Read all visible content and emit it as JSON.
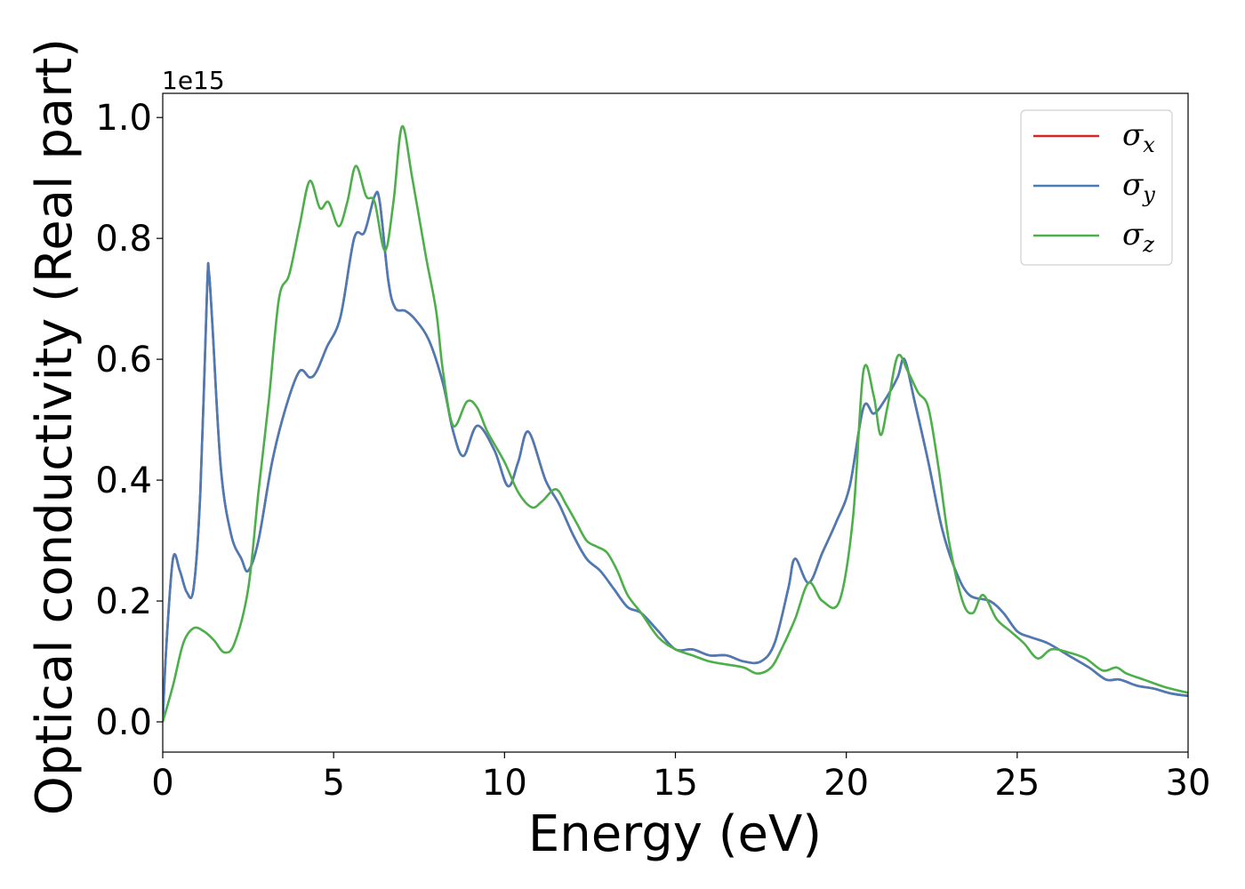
{
  "chart_data": {
    "type": "line",
    "xlabel": "Energy (eV)",
    "ylabel": "Optical conductivity (Real part)",
    "y_offset_label": "1e15",
    "xlim": [
      0,
      30
    ],
    "ylim": [
      -0.05,
      1.04
    ],
    "x_ticks": [
      0,
      5,
      10,
      15,
      20,
      25,
      30
    ],
    "x_tick_labels": [
      "0",
      "5",
      "10",
      "15",
      "20",
      "25",
      "30"
    ],
    "y_ticks": [
      0.0,
      0.2,
      0.4,
      0.6,
      0.8,
      1.0
    ],
    "y_tick_labels": [
      "0.0",
      "0.2",
      "0.4",
      "0.6",
      "0.8",
      "1.0"
    ],
    "grid": false,
    "legend_position": "top-right",
    "series": [
      {
        "name": "σ",
        "subscript": "x",
        "color": "#d62728",
        "points": [
          [
            0,
            0
          ],
          [
            0.1,
            0.12
          ],
          [
            0.3,
            0.27
          ],
          [
            0.5,
            0.25
          ],
          [
            0.7,
            0.215
          ],
          [
            0.9,
            0.22
          ],
          [
            1.1,
            0.38
          ],
          [
            1.3,
            0.72
          ],
          [
            1.35,
            0.745
          ],
          [
            1.45,
            0.66
          ],
          [
            1.7,
            0.42
          ],
          [
            2.0,
            0.31
          ],
          [
            2.3,
            0.27
          ],
          [
            2.5,
            0.25
          ],
          [
            2.8,
            0.3
          ],
          [
            3.2,
            0.43
          ],
          [
            3.6,
            0.52
          ],
          [
            4.0,
            0.58
          ],
          [
            4.3,
            0.57
          ],
          [
            4.5,
            0.58
          ],
          [
            4.8,
            0.62
          ],
          [
            5.2,
            0.67
          ],
          [
            5.6,
            0.8
          ],
          [
            5.9,
            0.81
          ],
          [
            6.2,
            0.87
          ],
          [
            6.35,
            0.86
          ],
          [
            6.6,
            0.73
          ],
          [
            6.8,
            0.685
          ],
          [
            7.1,
            0.68
          ],
          [
            7.4,
            0.665
          ],
          [
            7.8,
            0.63
          ],
          [
            8.2,
            0.56
          ],
          [
            8.5,
            0.48
          ],
          [
            8.8,
            0.44
          ],
          [
            9.2,
            0.49
          ],
          [
            9.7,
            0.45
          ],
          [
            10.1,
            0.39
          ],
          [
            10.4,
            0.43
          ],
          [
            10.7,
            0.48
          ],
          [
            11.2,
            0.4
          ],
          [
            11.6,
            0.36
          ],
          [
            12.0,
            0.31
          ],
          [
            12.4,
            0.27
          ],
          [
            12.8,
            0.25
          ],
          [
            13.2,
            0.22
          ],
          [
            13.6,
            0.19
          ],
          [
            14.0,
            0.18
          ],
          [
            14.5,
            0.15
          ],
          [
            15.0,
            0.12
          ],
          [
            15.5,
            0.12
          ],
          [
            16.0,
            0.11
          ],
          [
            16.5,
            0.11
          ],
          [
            17.0,
            0.1
          ],
          [
            17.5,
            0.1
          ],
          [
            17.9,
            0.13
          ],
          [
            18.3,
            0.22
          ],
          [
            18.5,
            0.27
          ],
          [
            18.9,
            0.23
          ],
          [
            19.3,
            0.28
          ],
          [
            19.7,
            0.33
          ],
          [
            20.1,
            0.39
          ],
          [
            20.5,
            0.52
          ],
          [
            20.8,
            0.51
          ],
          [
            21.1,
            0.53
          ],
          [
            21.5,
            0.57
          ],
          [
            21.7,
            0.6
          ],
          [
            22.0,
            0.53
          ],
          [
            22.4,
            0.43
          ],
          [
            22.8,
            0.32
          ],
          [
            23.2,
            0.25
          ],
          [
            23.6,
            0.21
          ],
          [
            24.2,
            0.2
          ],
          [
            24.6,
            0.18
          ],
          [
            25.0,
            0.15
          ],
          [
            25.4,
            0.14
          ],
          [
            25.9,
            0.13
          ],
          [
            26.5,
            0.11
          ],
          [
            27.1,
            0.09
          ],
          [
            27.6,
            0.07
          ],
          [
            28.0,
            0.07
          ],
          [
            28.5,
            0.06
          ],
          [
            29.0,
            0.055
          ],
          [
            29.5,
            0.047
          ],
          [
            30.0,
            0.043
          ]
        ]
      },
      {
        "name": "σ",
        "subscript": "y",
        "color": "#4a7bb7",
        "points": [
          [
            0,
            0
          ],
          [
            0.1,
            0.12
          ],
          [
            0.3,
            0.27
          ],
          [
            0.5,
            0.25
          ],
          [
            0.7,
            0.215
          ],
          [
            0.9,
            0.22
          ],
          [
            1.1,
            0.38
          ],
          [
            1.3,
            0.72
          ],
          [
            1.35,
            0.745
          ],
          [
            1.45,
            0.66
          ],
          [
            1.7,
            0.42
          ],
          [
            2.0,
            0.31
          ],
          [
            2.3,
            0.27
          ],
          [
            2.5,
            0.25
          ],
          [
            2.8,
            0.3
          ],
          [
            3.2,
            0.43
          ],
          [
            3.6,
            0.52
          ],
          [
            4.0,
            0.58
          ],
          [
            4.3,
            0.57
          ],
          [
            4.5,
            0.58
          ],
          [
            4.8,
            0.62
          ],
          [
            5.2,
            0.67
          ],
          [
            5.6,
            0.8
          ],
          [
            5.9,
            0.81
          ],
          [
            6.2,
            0.87
          ],
          [
            6.35,
            0.86
          ],
          [
            6.6,
            0.73
          ],
          [
            6.8,
            0.685
          ],
          [
            7.1,
            0.68
          ],
          [
            7.4,
            0.665
          ],
          [
            7.8,
            0.63
          ],
          [
            8.2,
            0.56
          ],
          [
            8.5,
            0.48
          ],
          [
            8.8,
            0.44
          ],
          [
            9.2,
            0.49
          ],
          [
            9.7,
            0.45
          ],
          [
            10.1,
            0.39
          ],
          [
            10.4,
            0.43
          ],
          [
            10.7,
            0.48
          ],
          [
            11.2,
            0.4
          ],
          [
            11.6,
            0.36
          ],
          [
            12.0,
            0.31
          ],
          [
            12.4,
            0.27
          ],
          [
            12.8,
            0.25
          ],
          [
            13.2,
            0.22
          ],
          [
            13.6,
            0.19
          ],
          [
            14.0,
            0.18
          ],
          [
            14.5,
            0.15
          ],
          [
            15.0,
            0.12
          ],
          [
            15.5,
            0.12
          ],
          [
            16.0,
            0.11
          ],
          [
            16.5,
            0.11
          ],
          [
            17.0,
            0.1
          ],
          [
            17.5,
            0.1
          ],
          [
            17.9,
            0.13
          ],
          [
            18.3,
            0.22
          ],
          [
            18.5,
            0.27
          ],
          [
            18.9,
            0.23
          ],
          [
            19.3,
            0.28
          ],
          [
            19.7,
            0.33
          ],
          [
            20.1,
            0.39
          ],
          [
            20.5,
            0.52
          ],
          [
            20.8,
            0.51
          ],
          [
            21.1,
            0.53
          ],
          [
            21.5,
            0.57
          ],
          [
            21.7,
            0.6
          ],
          [
            22.0,
            0.53
          ],
          [
            22.4,
            0.43
          ],
          [
            22.8,
            0.32
          ],
          [
            23.2,
            0.25
          ],
          [
            23.6,
            0.21
          ],
          [
            24.2,
            0.2
          ],
          [
            24.6,
            0.18
          ],
          [
            25.0,
            0.15
          ],
          [
            25.4,
            0.14
          ],
          [
            25.9,
            0.13
          ],
          [
            26.5,
            0.11
          ],
          [
            27.1,
            0.09
          ],
          [
            27.6,
            0.07
          ],
          [
            28.0,
            0.07
          ],
          [
            28.5,
            0.06
          ],
          [
            29.0,
            0.055
          ],
          [
            29.5,
            0.047
          ],
          [
            30.0,
            0.043
          ]
        ]
      },
      {
        "name": "σ",
        "subscript": "z",
        "color": "#4daf4a",
        "points": [
          [
            0,
            0
          ],
          [
            0.3,
            0.06
          ],
          [
            0.6,
            0.13
          ],
          [
            0.9,
            0.155
          ],
          [
            1.2,
            0.15
          ],
          [
            1.5,
            0.135
          ],
          [
            1.8,
            0.115
          ],
          [
            2.1,
            0.13
          ],
          [
            2.5,
            0.22
          ],
          [
            2.8,
            0.38
          ],
          [
            3.1,
            0.53
          ],
          [
            3.4,
            0.7
          ],
          [
            3.7,
            0.74
          ],
          [
            4.0,
            0.82
          ],
          [
            4.3,
            0.895
          ],
          [
            4.6,
            0.85
          ],
          [
            4.85,
            0.86
          ],
          [
            5.15,
            0.82
          ],
          [
            5.4,
            0.86
          ],
          [
            5.65,
            0.92
          ],
          [
            5.95,
            0.87
          ],
          [
            6.2,
            0.86
          ],
          [
            6.5,
            0.78
          ],
          [
            6.75,
            0.86
          ],
          [
            7.0,
            0.985
          ],
          [
            7.3,
            0.9
          ],
          [
            7.7,
            0.77
          ],
          [
            8.0,
            0.68
          ],
          [
            8.2,
            0.58
          ],
          [
            8.5,
            0.49
          ],
          [
            8.9,
            0.53
          ],
          [
            9.2,
            0.52
          ],
          [
            9.5,
            0.48
          ],
          [
            10.0,
            0.43
          ],
          [
            10.4,
            0.38
          ],
          [
            10.8,
            0.355
          ],
          [
            11.1,
            0.365
          ],
          [
            11.5,
            0.385
          ],
          [
            11.8,
            0.36
          ],
          [
            12.1,
            0.33
          ],
          [
            12.4,
            0.3
          ],
          [
            12.7,
            0.29
          ],
          [
            13.0,
            0.28
          ],
          [
            13.3,
            0.25
          ],
          [
            13.6,
            0.21
          ],
          [
            14.0,
            0.18
          ],
          [
            14.5,
            0.14
          ],
          [
            15.0,
            0.12
          ],
          [
            15.5,
            0.11
          ],
          [
            16.0,
            0.1
          ],
          [
            16.5,
            0.095
          ],
          [
            17.0,
            0.09
          ],
          [
            17.4,
            0.08
          ],
          [
            17.8,
            0.09
          ],
          [
            18.1,
            0.12
          ],
          [
            18.5,
            0.17
          ],
          [
            18.9,
            0.23
          ],
          [
            19.3,
            0.2
          ],
          [
            19.8,
            0.2
          ],
          [
            20.2,
            0.34
          ],
          [
            20.5,
            0.58
          ],
          [
            20.8,
            0.54
          ],
          [
            21.0,
            0.475
          ],
          [
            21.2,
            0.52
          ],
          [
            21.5,
            0.605
          ],
          [
            21.8,
            0.58
          ],
          [
            22.1,
            0.545
          ],
          [
            22.4,
            0.52
          ],
          [
            22.7,
            0.42
          ],
          [
            23.0,
            0.3
          ],
          [
            23.4,
            0.2
          ],
          [
            23.7,
            0.18
          ],
          [
            24.0,
            0.21
          ],
          [
            24.4,
            0.17
          ],
          [
            24.8,
            0.15
          ],
          [
            25.2,
            0.13
          ],
          [
            25.6,
            0.105
          ],
          [
            26.0,
            0.12
          ],
          [
            26.5,
            0.115
          ],
          [
            27.0,
            0.105
          ],
          [
            27.5,
            0.085
          ],
          [
            27.9,
            0.09
          ],
          [
            28.2,
            0.08
          ],
          [
            28.7,
            0.07
          ],
          [
            29.3,
            0.058
          ],
          [
            30.0,
            0.048
          ]
        ]
      }
    ]
  }
}
